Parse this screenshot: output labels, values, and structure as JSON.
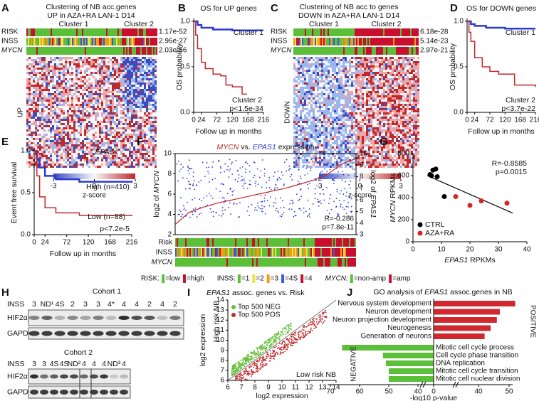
{
  "A": {
    "type": "heatmap",
    "letter": "A",
    "title": [
      "Clustering of NB acc.genes",
      "UP in AZA+RA LAN-1 D14"
    ],
    "clusters": [
      "Cluster 1",
      "Cluster 2"
    ],
    "cluster_colors": [
      "#2b3bd0",
      "#c0282a"
    ],
    "rows": [
      "RISK",
      "INSS",
      "MYCN"
    ],
    "pvalues": [
      "1.17e-52",
      "2.96e-27",
      "2.03e-56"
    ],
    "heatmap_label": "UP",
    "colorbar_ticks": [
      -3,
      0,
      3
    ],
    "colorbar_label": "z-score"
  },
  "B": {
    "type": "km",
    "letter": "B",
    "title": "OS for UP genes",
    "ylabel": "OS probability",
    "xlabel": "Follow up in months",
    "xlim": [
      0,
      216
    ],
    "xticks": [
      0,
      24,
      72,
      120,
      168,
      216
    ],
    "ylim": [
      0,
      1
    ],
    "yticks": [
      {
        "value": 0,
        "label": "0.0"
      },
      {
        "value": 0.5,
        "label": "0.5"
      },
      {
        "value": 1,
        "label": "1.0"
      }
    ],
    "curves": [
      {
        "name": "Cluster 1",
        "color": "#2b3bd0",
        "x": [
          0,
          12,
          24,
          60,
          120,
          216
        ],
        "y": [
          1,
          0.96,
          0.93,
          0.91,
          0.9,
          0.9
        ]
      },
      {
        "name": "Cluster 2",
        "color": "#c0282a",
        "x": [
          0,
          6,
          12,
          24,
          36,
          60,
          84,
          100,
          120,
          150,
          165
        ],
        "y": [
          1,
          0.85,
          0.7,
          0.55,
          0.48,
          0.42,
          0.4,
          0.3,
          0.28,
          0.2,
          0.2
        ]
      }
    ],
    "pvalue": "p<1.5e-34"
  },
  "C": {
    "type": "heatmap",
    "letter": "C",
    "title": [
      "Clustering of NB acc to genes",
      "DOWN in AZA+RA LAN-1 D14"
    ],
    "clusters": [
      "Cluster 1",
      "Cluster 2"
    ],
    "cluster_colors": [
      "#2b3bd0",
      "#c0282a"
    ],
    "rows": [
      "RISK",
      "INSS",
      "MYCN"
    ],
    "pvalues": [
      "6.18e-28",
      "5.14e-23",
      "2.97e-21"
    ],
    "heatmap_label": "DOWN",
    "colorbar_ticks": [
      -3,
      0,
      3
    ],
    "colorbar_label": "z-score"
  },
  "D": {
    "type": "km",
    "letter": "D",
    "title": "OS for DOWN genes",
    "ylabel": "OS probability",
    "xlabel": "Follow up in months",
    "xlim": [
      0,
      216
    ],
    "xticks": [
      0,
      24,
      72,
      120,
      168,
      216
    ],
    "ylim": [
      0,
      1
    ],
    "yticks": [
      {
        "value": 0,
        "label": "0.0"
      },
      {
        "value": 0.5,
        "label": "0.5"
      },
      {
        "value": 1,
        "label": "1.0"
      }
    ],
    "curves": [
      {
        "name": "Cluster 1",
        "color": "#2b3bd0",
        "x": [
          0,
          12,
          24,
          60,
          120,
          216
        ],
        "y": [
          1,
          0.97,
          0.95,
          0.93,
          0.92,
          0.92
        ]
      },
      {
        "name": "Cluster 2",
        "color": "#c0282a",
        "x": [
          0,
          6,
          12,
          24,
          48,
          72,
          100,
          150,
          216
        ],
        "y": [
          1,
          0.88,
          0.78,
          0.6,
          0.5,
          0.45,
          0.42,
          0.3,
          0.28
        ]
      }
    ],
    "pvalue": "p<3.7e-22"
  },
  "E": {
    "type": "km",
    "letter": "E",
    "gene": "EPAS1",
    "ylabel": "Event free survival",
    "xlabel": "Follow up in months",
    "xlim": [
      0,
      216
    ],
    "xticks": [
      0,
      24,
      72,
      120,
      168,
      216
    ],
    "ylim": [
      0,
      1
    ],
    "yticks": [
      {
        "value": 0,
        "label": "0.0"
      },
      {
        "value": 0.5,
        "label": "0.5"
      },
      {
        "value": 1,
        "label": "1.0"
      }
    ],
    "curves": [
      {
        "name": "High (n=410)",
        "color": "#2b3bd0",
        "x": [
          0,
          6,
          12,
          24,
          48,
          100,
          216
        ],
        "y": [
          1,
          0.9,
          0.8,
          0.7,
          0.66,
          0.63,
          0.62
        ]
      },
      {
        "name": "Low (n=88)",
        "color": "#c0282a",
        "x": [
          0,
          6,
          12,
          24,
          48,
          100,
          216
        ],
        "y": [
          1,
          0.7,
          0.45,
          0.32,
          0.26,
          0.23,
          0.22
        ]
      }
    ],
    "pvalue": "p<7.2e-5"
  },
  "F": {
    "type": "dual",
    "letter": "F",
    "title": [
      "MYCN",
      " vs. ",
      "EPAS1",
      " expression"
    ],
    "ylabel": [
      "log2 of ",
      "MYCN"
    ],
    "y2label": [
      "log2 of ",
      "EPAS1"
    ],
    "ylim": [
      2,
      10
    ],
    "yticks": [
      2,
      4,
      6,
      8,
      10
    ],
    "y2lim": [
      3,
      10
    ],
    "y2ticks": [
      3,
      4,
      5,
      6,
      7,
      8,
      9,
      10
    ],
    "trend_y": [
      3,
      4.2,
      4.7,
      5.1,
      5.4,
      5.7,
      6.0,
      6.3,
      6.6,
      7.0,
      7.4,
      8.0,
      9.0,
      9.5
    ],
    "trend_color": "#c0282a",
    "R": "R=-0.286",
    "p": "p=7.8e-11",
    "rows": [
      "Risk",
      "INSS",
      "MYCN"
    ],
    "legend": [
      {
        "label": "RISK:",
        "items": [
          {
            "label": "=low",
            "color": "#5cbf3a"
          },
          {
            "label": "=high",
            "color": "#c8102e"
          }
        ]
      },
      {
        "label": "INSS:",
        "items": [
          {
            "label": "=1",
            "color": "#5cbf3a"
          },
          {
            "label": "=2",
            "color": "#f0e442"
          },
          {
            "label": "=3",
            "color": "#f39c12"
          },
          {
            "label": "=4S",
            "color": "#3b5bdb"
          },
          {
            "label": "=4",
            "color": "#c8102e"
          }
        ]
      },
      {
        "label": "MYCN:",
        "items": [
          {
            "label": "=non-amp",
            "color": "#5cbf3a"
          },
          {
            "label": "=amp",
            "color": "#c8102e"
          }
        ]
      }
    ]
  },
  "G": {
    "type": "scatter",
    "letter": "G",
    "ylabel": [
      "MYCN",
      " RPKMs"
    ],
    "xlabel": [
      "EPAS1",
      " RPKMs"
    ],
    "xlim": [
      0,
      40
    ],
    "xticks": [
      0,
      10,
      20,
      30,
      40
    ],
    "ylim": [
      0,
      800
    ],
    "yticks": [
      0,
      200,
      400,
      600,
      800
    ],
    "series": [
      {
        "name": "CTRL",
        "color": "#000000",
        "x": [
          6,
          7,
          8,
          6.5,
          8.5,
          11
        ],
        "y": [
          610,
          650,
          660,
          600,
          590,
          410
        ]
      },
      {
        "name": "AZA+RA",
        "color": "#d62728",
        "x": [
          15,
          20,
          24,
          33
        ],
        "y": [
          410,
          330,
          370,
          350
        ]
      }
    ],
    "fit": {
      "x": [
        5,
        35
      ],
      "y": [
        600,
        260
      ]
    },
    "R": "R=-0.8585",
    "p": "p=0.0015"
  },
  "H": {
    "type": "blot",
    "letter": "H",
    "cohorts": [
      {
        "title": "Cohort 1",
        "inss_label": "INSS",
        "rows": [
          "HIF2α",
          "GAPDH"
        ],
        "lanes": [
          {
            "label": "3",
            "color": "#e08a1e"
          },
          {
            "label": "ND¹",
            "color": "#1f2d7a"
          },
          {
            "label": "4S",
            "color": "#2b5bd0"
          },
          {
            "label": "2",
            "color": "#3aa02a"
          },
          {
            "label": "3",
            "color": "#e08a1e"
          },
          {
            "label": "3",
            "color": "#e08a1e"
          },
          {
            "label": "4*",
            "color": "#c0282a"
          },
          {
            "label": "4",
            "color": "#c0282a"
          },
          {
            "label": "4",
            "color": "#c0282a"
          },
          {
            "label": "2",
            "color": "#3aa02a"
          },
          {
            "label": "4",
            "color": "#c0282a"
          },
          {
            "label": "2",
            "color": "#3aa02a"
          }
        ]
      },
      {
        "title": "Cohort 2",
        "inss_label": "INSS",
        "rows": [
          "HIF2α",
          "GAPDH"
        ],
        "lanes": [
          {
            "label": "3",
            "color": "#e08a1e"
          },
          {
            "label": "3",
            "color": "#e08a1e"
          },
          {
            "label": "4S",
            "color": "#2b5bd0"
          },
          {
            "label": "4S",
            "color": "#2b5bd0"
          },
          {
            "label": "ND²",
            "color": "#1f2d7a"
          },
          {
            "label": "4",
            "color": "#c0282a"
          },
          {
            "label": "4",
            "color": "#c0282a"
          },
          {
            "label": "4",
            "color": "#c0282a"
          },
          {
            "label": "ND³",
            "color": "#1f2d7a"
          },
          {
            "label": "4",
            "color": "#c0282a"
          }
        ]
      }
    ]
  },
  "I": {
    "type": "cloud",
    "letter": "I",
    "title": [
      "EPAS1",
      " assoc. genes vs. Risk"
    ],
    "xlim": [
      6,
      14
    ],
    "xticks": [
      6,
      7,
      8,
      9,
      10,
      11,
      12,
      13,
      14
    ],
    "ylim": [
      6,
      14
    ],
    "yticks": [
      6,
      7,
      8,
      9,
      10,
      11,
      12,
      13,
      14
    ],
    "xlabel": "log2 expression",
    "ylabel": "log2 expression",
    "series": [
      {
        "name": "Top 500 NEG",
        "color": "#6abf3f"
      },
      {
        "name": "Top 500 POS",
        "color": "#c0282a"
      }
    ],
    "high": "High risk NB",
    "low": "Low risk NB"
  },
  "J": {
    "type": "gobar",
    "letter": "J",
    "title": [
      "GO analysis of ",
      "EPAS1",
      " assoc.genes in NB"
    ],
    "positive": {
      "label": "POSITIVE",
      "color": "#d0282e",
      "terms": [
        "Nervous system development",
        "Neuron development",
        "Neuron projection development",
        "Neurogenesis",
        "Generation of neurons"
      ],
      "values": [
        52,
        47,
        46,
        44,
        42
      ]
    },
    "negative": {
      "label": "NEGATIVE",
      "color": "#5cbf3a",
      "terms": [
        "Mitotic cell cycle process",
        "Cell cycle phase transition",
        "DNA replication",
        "Mitotic cell cycle transition",
        "Mitotic cell nuclear division"
      ],
      "values": [
        66,
        52,
        51,
        50,
        50
      ]
    },
    "xticks_negative": [
      70,
      60,
      50,
      40,
      0
    ],
    "xticks_positive": [
      40,
      50
    ],
    "xlabel": "-log10 p-value"
  }
}
